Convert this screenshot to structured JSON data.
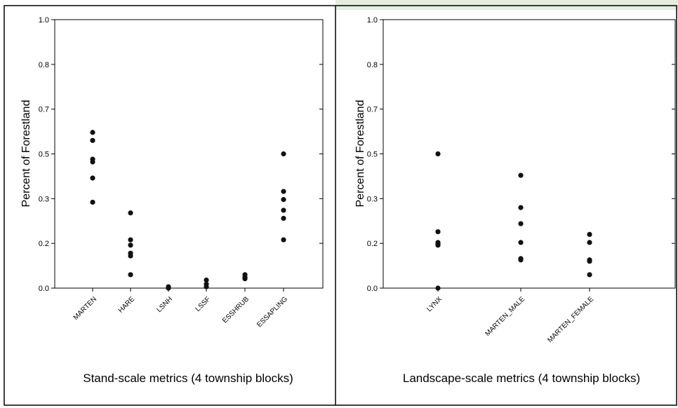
{
  "colors": {
    "frame": "#000000",
    "background": "#ffffff",
    "top_strip": "#e3eedf",
    "point": "#111111"
  },
  "chart_data": [
    {
      "type": "scatter",
      "ylabel": "Percent of Forestland",
      "xlabel": "Stand-scale metrics (4 township blocks)",
      "yticks": [
        "0.0",
        "0.2",
        "0.3",
        "0.5",
        "0.7",
        "0.8",
        "1.0"
      ],
      "ytick_values": [
        0,
        0.1667,
        0.3333,
        0.5,
        0.6667,
        0.8333,
        1.0
      ],
      "ylim": [
        0,
        1
      ],
      "categories": [
        "MARTEN",
        "HARE",
        "LSNH",
        "LSSF",
        "ESSHRUB",
        "ESSAPLING"
      ],
      "points": [
        [
          0.58,
          0.55,
          0.48,
          0.47,
          0.41,
          0.32
        ],
        [
          0.28,
          0.18,
          0.16,
          0.13,
          0.12,
          0.05
        ],
        [
          0.005,
          0.0
        ],
        [
          0.03,
          0.015,
          0.005
        ],
        [
          0.05,
          0.04,
          0.035
        ],
        [
          0.5,
          0.36,
          0.33,
          0.29,
          0.26,
          0.18
        ]
      ],
      "grid": false
    },
    {
      "type": "scatter",
      "ylabel": "Percent of Forestland",
      "xlabel": "Landscape-scale metrics (4 township blocks)",
      "yticks": [
        "0.0",
        "0.2",
        "0.3",
        "0.5",
        "0.7",
        "0.8",
        "1.0"
      ],
      "ytick_values": [
        0,
        0.1667,
        0.3333,
        0.5,
        0.6667,
        0.8333,
        1.0
      ],
      "ylim": [
        0,
        1
      ],
      "categories": [
        "LYNX",
        "MARTEN_MALE",
        "MARTEN_FEMALE"
      ],
      "points": [
        [
          0.5,
          0.21,
          0.17,
          0.165,
          0.16,
          0.0
        ],
        [
          0.42,
          0.3,
          0.24,
          0.17,
          0.11,
          0.105
        ],
        [
          0.2,
          0.17,
          0.105,
          0.1,
          0.05
        ]
      ],
      "grid": false
    }
  ]
}
